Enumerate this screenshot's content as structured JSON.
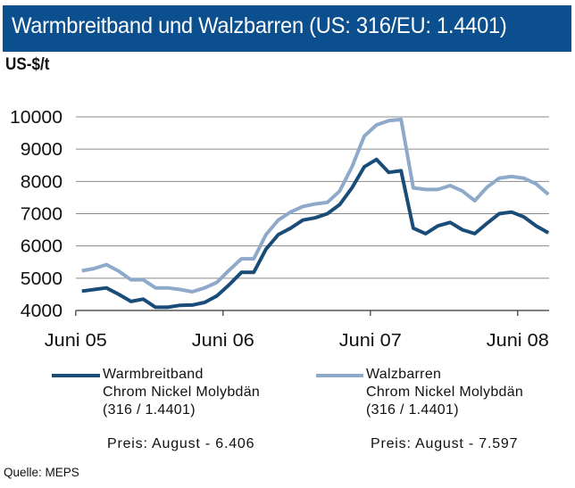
{
  "title": "Warmbreitband und Walzbarren (US: 316/EU: 1.4401)",
  "colors": {
    "title_bar": "#0b4f8f",
    "series_dark": "#1a4c78",
    "series_light": "#8ea9c9"
  },
  "chart_data": {
    "type": "line",
    "title": "Warmbreitband und Walzbarren (US: 316/EU: 1.4401)",
    "ylabel": "US-$/t",
    "xlabel": "",
    "ylim": [
      4000,
      10000
    ],
    "yticks": [
      "4000",
      "5000",
      "6000",
      "7000",
      "8000",
      "9000",
      "10000"
    ],
    "x_range": "Juni 05 – August 08 (monthly)",
    "xtick_labels": [
      "Juni 05",
      "Juni 06",
      "Juni 07",
      "Juni 08"
    ],
    "grid": "horizontal",
    "legend_position": "bottom",
    "series": [
      {
        "name": "Warmbreitband Chrom Nickel Molybdän (316 / 1.4401)",
        "color": "#1a4c78",
        "values": [
          4600,
          4650,
          4700,
          4500,
          4280,
          4350,
          4100,
          4100,
          4160,
          4170,
          4250,
          4450,
          4800,
          5180,
          5180,
          5900,
          6350,
          6550,
          6800,
          6870,
          7000,
          7280,
          7800,
          8450,
          8680,
          8280,
          8330,
          6550,
          6380,
          6620,
          6730,
          6500,
          6380,
          6700,
          7000,
          7050,
          6900,
          6620,
          6406
        ]
      },
      {
        "name": "Walzbarren Chrom Nickel Molybdän (316 / 1.4401)",
        "color": "#8ea9c9",
        "values": [
          5230,
          5300,
          5420,
          5220,
          4950,
          4950,
          4700,
          4700,
          4650,
          4580,
          4700,
          4870,
          5250,
          5600,
          5600,
          6350,
          6800,
          7050,
          7220,
          7300,
          7350,
          7700,
          8450,
          9400,
          9750,
          9880,
          9920,
          7800,
          7750,
          7750,
          7870,
          7700,
          7400,
          7820,
          8100,
          8150,
          8100,
          7920,
          7597
        ]
      }
    ]
  },
  "legend": {
    "dark": {
      "line1": "Warmbreitband",
      "line2": "Chrom Nickel Molybdän",
      "line3": "(316 / 1.4401)",
      "price": "Preis: August - 6.406"
    },
    "light": {
      "line1": "Walzbarren",
      "line2": "Chrom Nickel Molybdän",
      "line3": "(316 / 1.4401)",
      "price": "Preis: August - 7.597"
    }
  },
  "source": "Quelle: MEPS"
}
